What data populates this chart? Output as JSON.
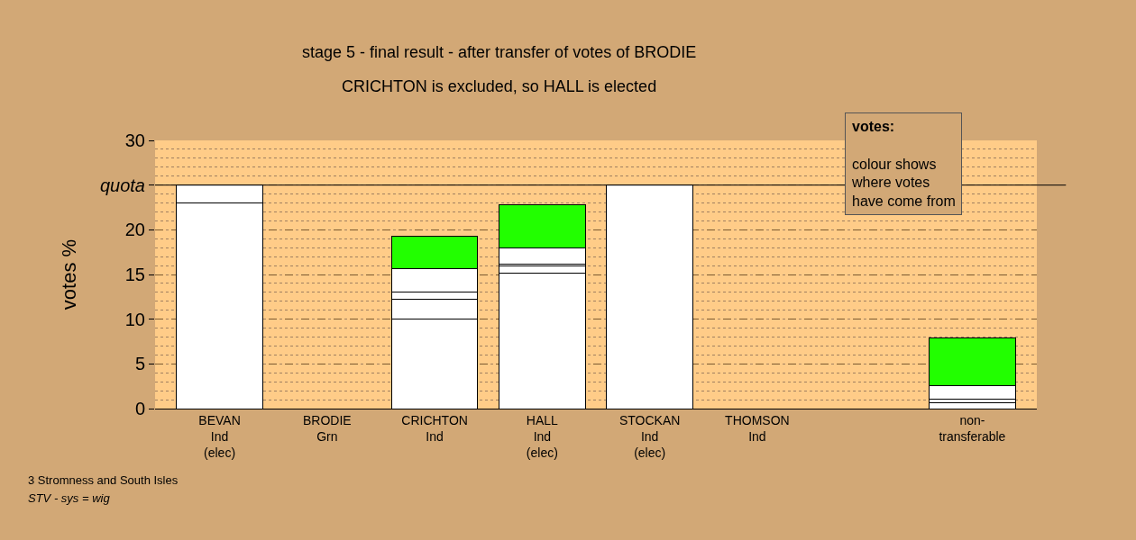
{
  "chart_data": {
    "type": "bar",
    "title": "stage 5 - final result - after transfer of votes of BRODIE",
    "subtitle": "CRICHTON is excluded, so HALL is elected",
    "ylabel": "votes %",
    "categories": [
      "BEVAN\nInd\n(elec)",
      "BRODIE\nGrn",
      "CRICHTON\nInd",
      "HALL\nInd\n(elec)",
      "STOCKAN\nInd\n(elec)",
      "THOMSON\nInd",
      null,
      "non-\ntransferable"
    ],
    "stacked": true,
    "series": [
      {
        "color": "#ffffff",
        "values": [
          23,
          null,
          10,
          15.2,
          25,
          null,
          null,
          0.7
        ]
      },
      {
        "color": "#ffffff",
        "values": [
          2,
          null,
          2.2,
          0.8,
          null,
          null,
          null,
          0.4
        ]
      },
      {
        "color": "#ffffff",
        "values": [
          null,
          null,
          0.8,
          0.2,
          null,
          null,
          null,
          1.5
        ]
      },
      {
        "color": "#ffffff",
        "values": [
          null,
          null,
          2.7,
          1.8,
          null,
          null,
          null,
          null
        ]
      },
      {
        "color": "#22ff00",
        "values": [
          null,
          null,
          3.6,
          4.8,
          null,
          null,
          null,
          5.3
        ]
      }
    ],
    "ylim": [
      0,
      30
    ],
    "yticks": [
      0,
      5,
      10,
      15,
      20,
      {
        "value": 25,
        "label": "quota"
      },
      30
    ],
    "ref_lines": [
      {
        "axis": "y",
        "value": 25,
        "color": "#000000"
      }
    ],
    "grid": "y",
    "annotations": [
      "votes:",
      "colour shows\nwhere votes\nhave come from",
      "3 Stromness and South Isles",
      "STV - sys = wig"
    ]
  }
}
